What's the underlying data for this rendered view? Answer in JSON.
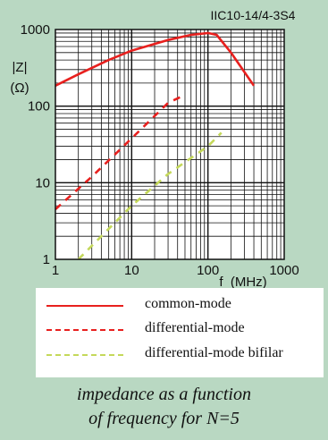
{
  "chart_data": {
    "type": "line",
    "part_number": "IIC10-14/4-3S4",
    "ylabel_line1": "|Z|",
    "ylabel_line2": "(Ω)",
    "xlabel": "f  (MHz)",
    "xscale": "log",
    "yscale": "log",
    "xlim": [
      1,
      1000
    ],
    "ylim": [
      1,
      1000
    ],
    "grid": true,
    "x_ticks": [
      "1",
      "10",
      "100",
      "1000"
    ],
    "y_ticks": [
      "1",
      "10",
      "100",
      "1000"
    ],
    "series": [
      {
        "name": "common-mode",
        "color": "#e8201e",
        "style": "solid",
        "points": [
          [
            1,
            185
          ],
          [
            2,
            260
          ],
          [
            5,
            400
          ],
          [
            10,
            530
          ],
          [
            30,
            730
          ],
          [
            60,
            850
          ],
          [
            100,
            900
          ],
          [
            130,
            850
          ],
          [
            200,
            500
          ],
          [
            400,
            185
          ]
        ]
      },
      {
        "name": "differential-mode",
        "color": "#e8201e",
        "style": "dashed",
        "points": [
          [
            1,
            4.5
          ],
          [
            3,
            12
          ],
          [
            10,
            38
          ],
          [
            30,
            110
          ],
          [
            50,
            140
          ]
        ]
      },
      {
        "name": "differential-mode bifilar",
        "color": "#c4d85a",
        "style": "dashed",
        "points": [
          [
            2,
            1
          ],
          [
            10,
            5
          ],
          [
            30,
            13
          ],
          [
            100,
            30
          ],
          [
            150,
            45
          ]
        ]
      }
    ]
  },
  "legend": {
    "items": [
      {
        "label": "common-mode",
        "color": "#e8201e",
        "style": "solid"
      },
      {
        "label": "differential-mode",
        "color": "#e8201e",
        "style": "dashed"
      },
      {
        "label": "differential-mode bifilar",
        "color": "#c4d85a",
        "style": "dashed"
      }
    ]
  },
  "caption": {
    "line1": "impedance as a function",
    "line2": "of frequency for N=5"
  }
}
